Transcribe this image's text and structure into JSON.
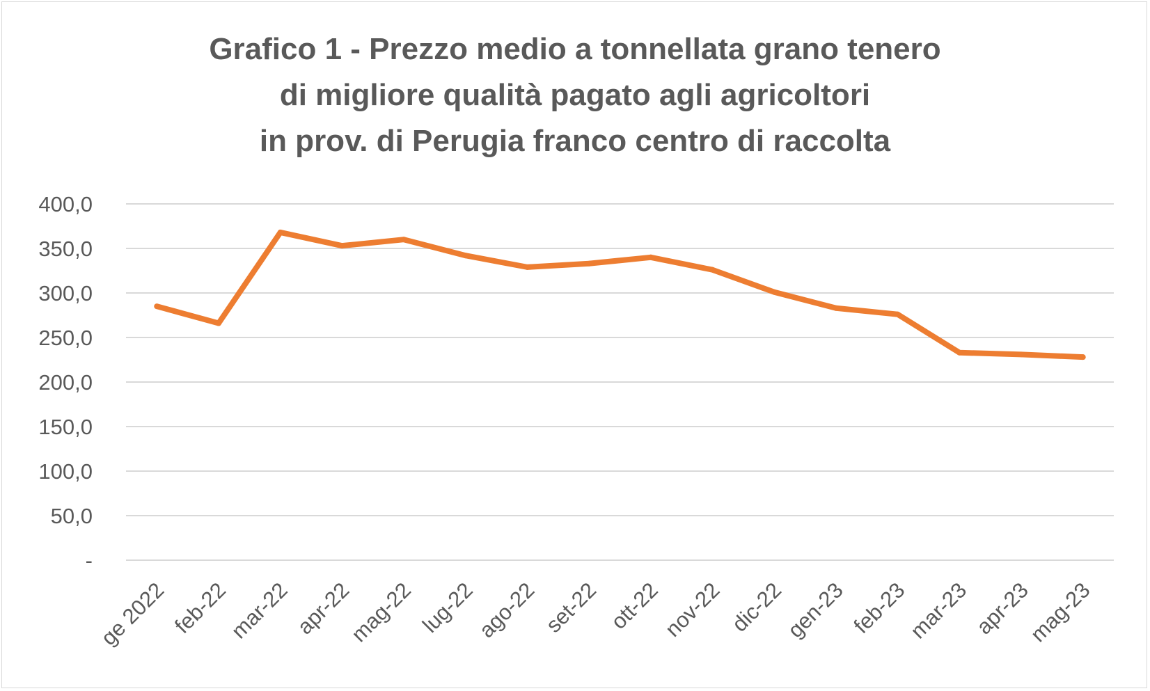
{
  "chart_data": {
    "type": "line",
    "title_lines": [
      "Grafico 1 - Prezzo medio a tonnellata grano tenero",
      "di migliore qualità pagato agli agricoltori",
      "in prov. di Perugia franco centro di raccolta"
    ],
    "xlabel": "",
    "ylabel": "",
    "categories": [
      "ge 2022",
      "feb-22",
      "mar-22",
      "apr-22",
      "mag-22",
      "lug-22",
      "ago-22",
      "set-22",
      "ott-22",
      "nov-22",
      "dic-22",
      "gen-23",
      "feb-23",
      "mar-23",
      "apr-23",
      "mag-23"
    ],
    "series": [
      {
        "values": [
          285,
          266,
          368,
          353,
          360,
          342,
          329,
          333,
          340,
          326,
          301,
          283,
          276,
          233,
          231,
          228
        ],
        "color": "#ED7D31"
      }
    ],
    "ylim": [
      0,
      400
    ],
    "yticks": [
      0,
      50,
      100,
      150,
      200,
      250,
      300,
      350,
      400
    ],
    "ytick_labels": [
      "-",
      "50,0",
      "100,0",
      "150,0",
      "200,0",
      "250,0",
      "300,0",
      "350,0",
      "400,0"
    ],
    "grid": true,
    "legend": "none",
    "gridline_color": "#d9d9d9",
    "text_color": "#595959"
  }
}
